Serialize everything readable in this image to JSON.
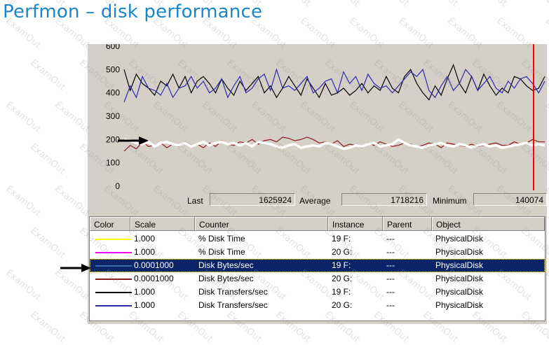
{
  "slide": {
    "title": "Perfmon – disk performance"
  },
  "watermark": "ExamOut",
  "chart_data": {
    "type": "line",
    "y_ticks": [
      "600",
      "500",
      "400",
      "300",
      "200",
      "100",
      "0"
    ],
    "ylim": [
      0,
      600
    ],
    "series": [
      {
        "color": "#000000",
        "width": 1.2,
        "values": [
          500,
          410,
          480,
          440,
          420,
          390,
          450,
          430,
          480,
          420,
          470,
          400,
          450,
          470,
          440,
          400,
          460,
          420,
          390,
          450,
          410,
          440,
          470,
          400,
          430,
          380,
          420,
          470,
          430,
          390,
          460,
          420,
          380,
          440,
          390,
          400,
          420,
          390,
          410,
          440,
          400,
          430,
          410,
          470,
          420,
          400,
          470,
          500,
          440,
          400,
          370,
          430,
          390,
          460,
          520,
          440,
          400,
          470,
          410,
          480,
          430,
          390,
          420,
          400,
          470,
          460,
          430,
          410,
          420,
          470
        ]
      },
      {
        "color": "#2b2bb0",
        "width": 1.2,
        "values": [
          360,
          430,
          380,
          470,
          420,
          410,
          390,
          440,
          380,
          420,
          430,
          470,
          420,
          450,
          400,
          420,
          460,
          380,
          430,
          470,
          400,
          420,
          460,
          480,
          410,
          500,
          420,
          430,
          410,
          440,
          470,
          400,
          420,
          450,
          460,
          400,
          490,
          440,
          470,
          410,
          480,
          440,
          420,
          430,
          400,
          430,
          460,
          490,
          470,
          500,
          410,
          380,
          430,
          470,
          410,
          440,
          500,
          470,
          410,
          440,
          470,
          420,
          400,
          450,
          420,
          460,
          470,
          440,
          400,
          450
        ]
      },
      {
        "color": "#8b1a1a",
        "width": 1.2,
        "values": [
          150,
          175,
          160,
          190,
          170,
          175,
          185,
          165,
          180,
          170,
          190,
          175,
          180,
          165,
          185,
          170,
          195,
          180,
          175,
          190,
          185,
          200,
          180,
          195,
          200,
          190,
          210,
          205,
          195,
          200,
          210,
          200,
          185,
          190,
          180,
          195,
          170,
          180,
          175,
          165,
          185,
          175,
          190,
          180,
          170,
          175,
          185,
          180,
          170,
          175,
          185,
          180,
          165,
          185,
          180,
          175,
          170,
          180,
          170,
          175,
          180,
          185,
          175,
          175,
          190,
          180,
          185,
          200,
          190,
          190
        ]
      },
      {
        "color": "#ffffff",
        "width": 3.5,
        "values": [
          200,
          195,
          185,
          180,
          190,
          170,
          185,
          190,
          180,
          175,
          185,
          170,
          180,
          190,
          175,
          185,
          190,
          180,
          185,
          175,
          185,
          170,
          190,
          185,
          180,
          170,
          165,
          175,
          180,
          165,
          170,
          175,
          170,
          185,
          180,
          170,
          160,
          165,
          175,
          170,
          180,
          185,
          170,
          175,
          180,
          200,
          185,
          175,
          170,
          165,
          175,
          180,
          185,
          175,
          170,
          180,
          175,
          165,
          175,
          180,
          170,
          175,
          165,
          170,
          175,
          180,
          185,
          175,
          180,
          175
        ]
      }
    ]
  },
  "stats": {
    "last_label": "Last",
    "last_value": "1625924",
    "average_label": "Average",
    "average_value": "1718216",
    "minimum_label": "Minimum",
    "minimum_value": "140074"
  },
  "table": {
    "headers": [
      "Color",
      "Scale",
      "Counter",
      "Instance",
      "Parent",
      "Object"
    ],
    "rows": [
      {
        "color": "#ffff00",
        "scale": "1.000",
        "counter": "% Disk Time",
        "instance": "19 F:",
        "parent": "---",
        "object": "PhysicalDisk"
      },
      {
        "color": "#ff00ff",
        "scale": "1.000",
        "counter": "% Disk Time",
        "instance": "20 G:",
        "parent": "---",
        "object": "PhysicalDisk"
      },
      {
        "color": "#3a6ea5",
        "scale": "0.0001000",
        "counter": "Disk Bytes/sec",
        "instance": "19 F:",
        "parent": "---",
        "object": "PhysicalDisk"
      },
      {
        "color": "#8b1a1a",
        "scale": "0.0001000",
        "counter": "Disk Bytes/sec",
        "instance": "20 G:",
        "parent": "---",
        "object": "PhysicalDisk"
      },
      {
        "color": "#000000",
        "scale": "1.000",
        "counter": "Disk Transfers/sec",
        "instance": "19 F:",
        "parent": "---",
        "object": "PhysicalDisk"
      },
      {
        "color": "#2b2bb0",
        "scale": "1.000",
        "counter": "Disk Transfers/sec",
        "instance": "20 G:",
        "parent": "---",
        "object": "PhysicalDisk"
      }
    ],
    "selected_row": 2
  }
}
